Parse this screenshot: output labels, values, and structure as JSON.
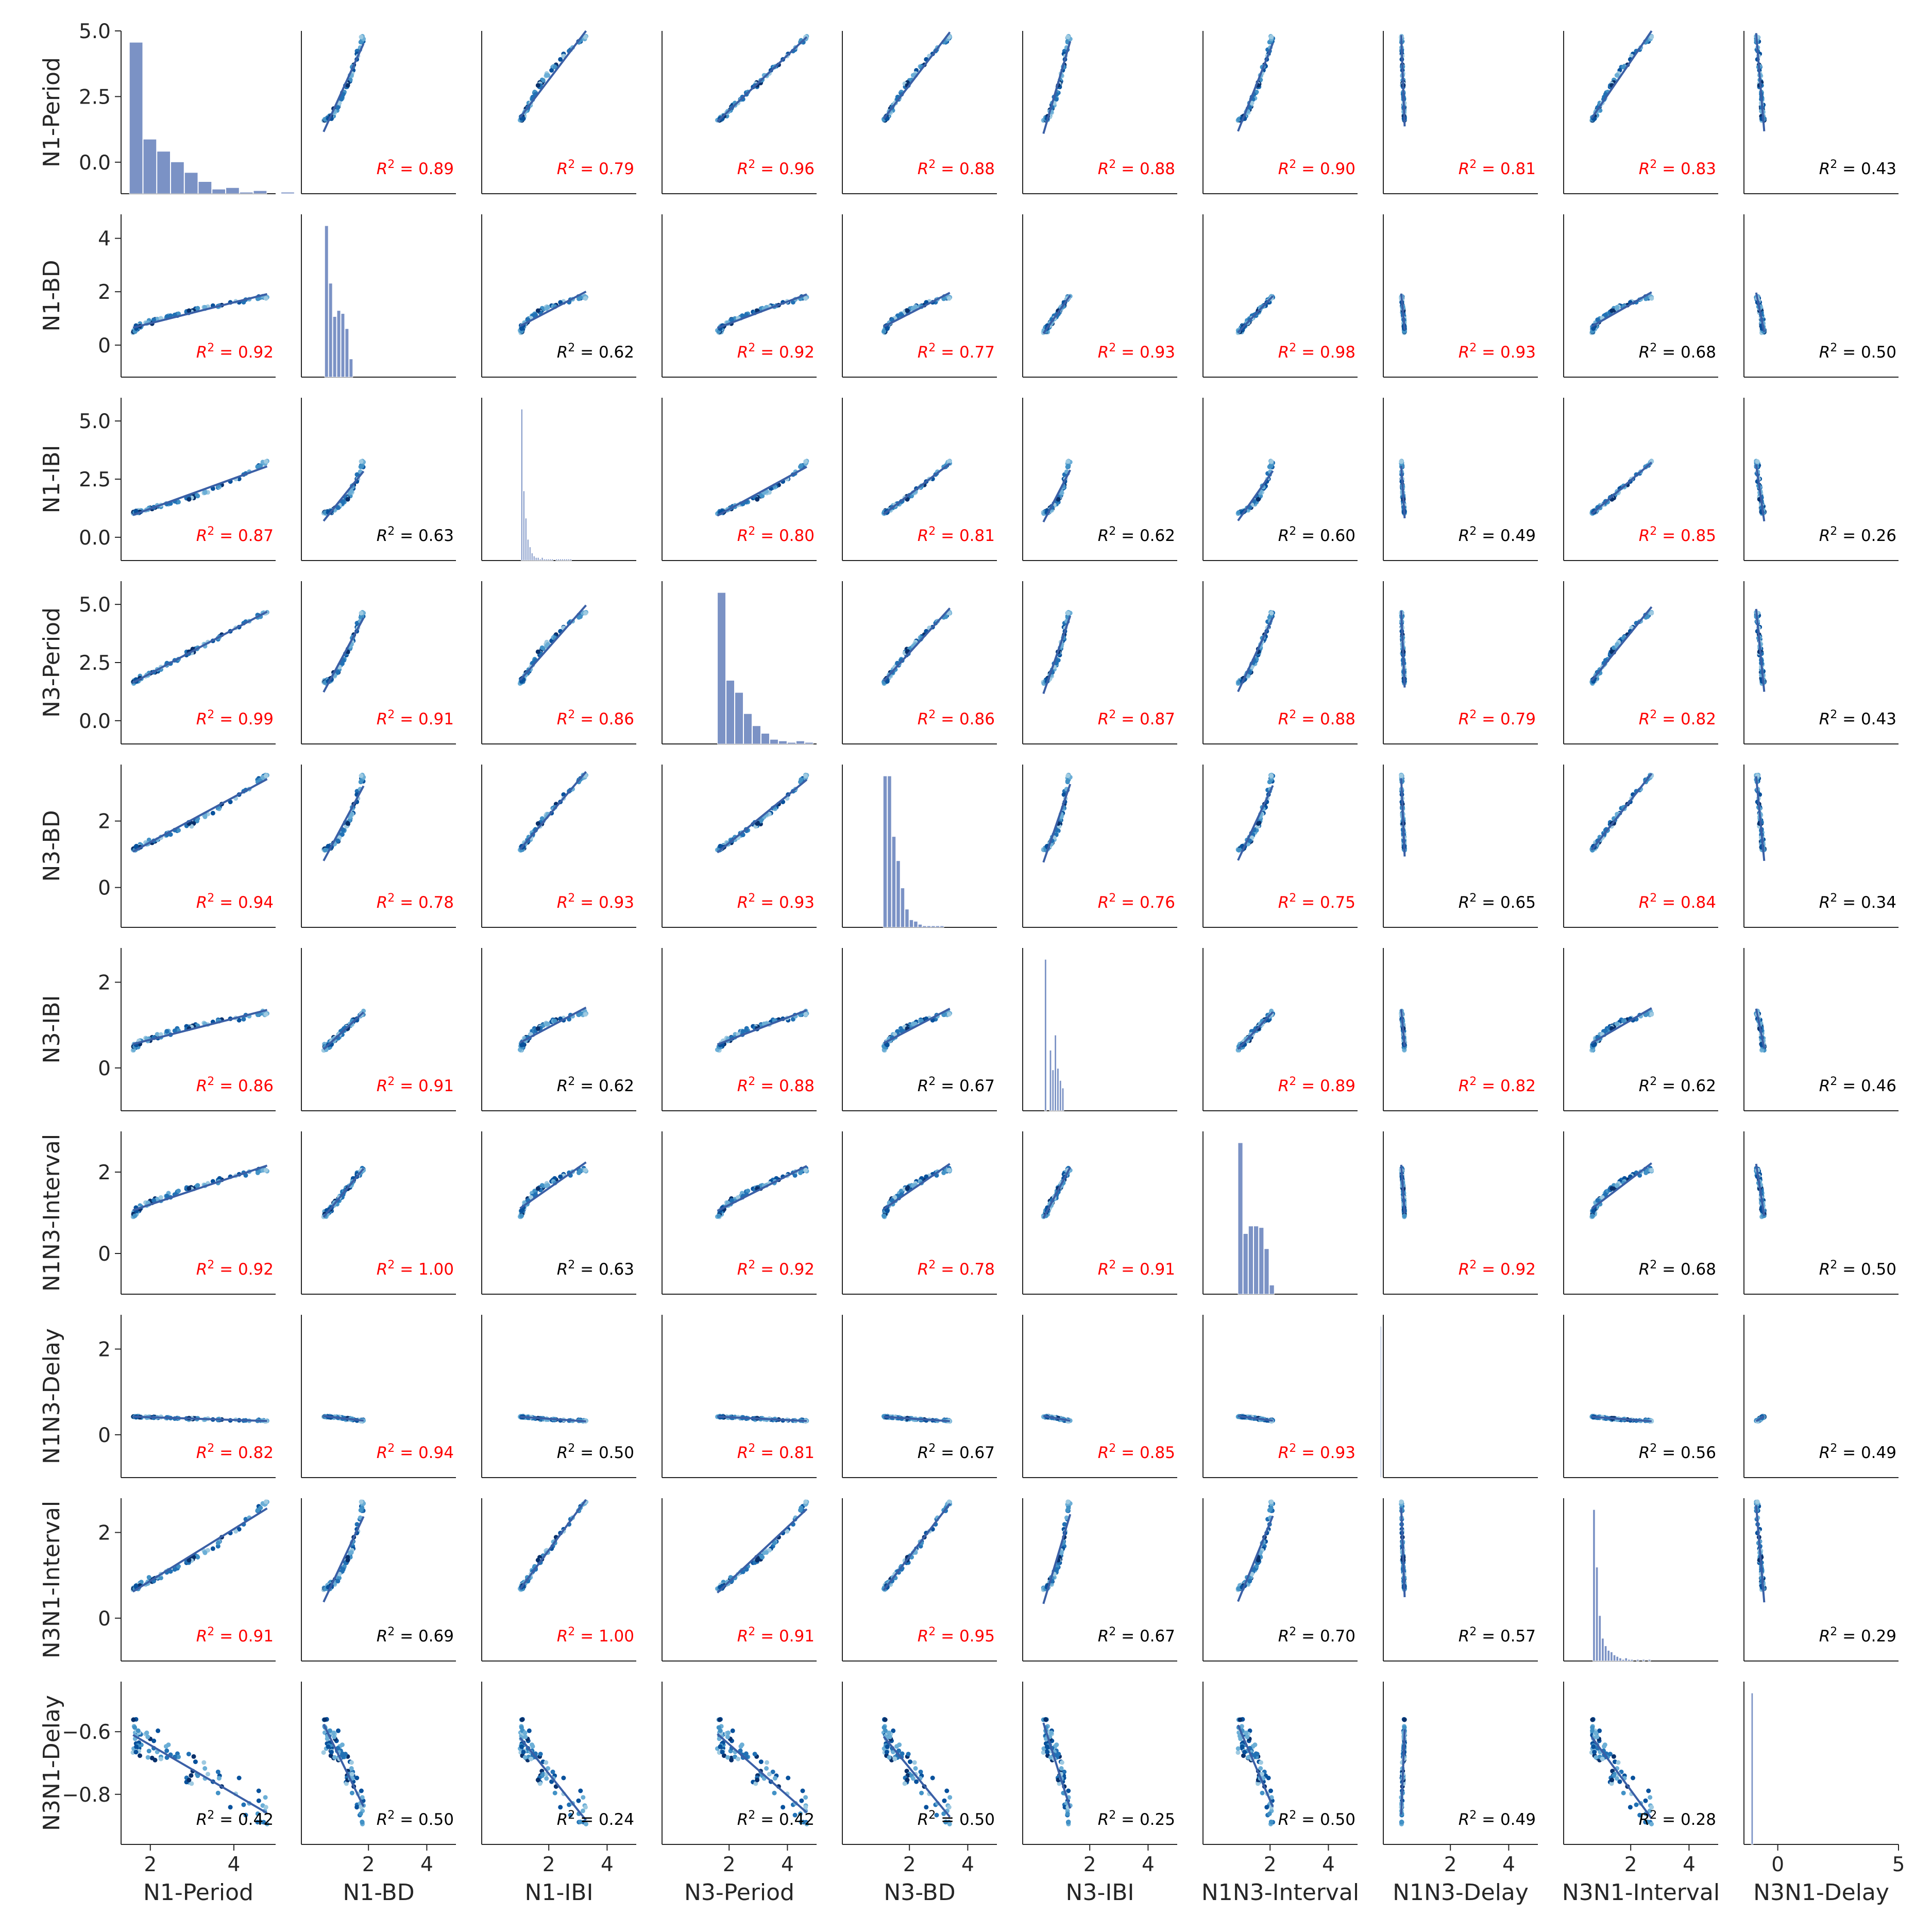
{
  "chart_data": {
    "type": "scatter-matrix",
    "variables": [
      "N1-Period",
      "N1-BD",
      "N1-IBI",
      "N3-Period",
      "N3-BD",
      "N3-IBI",
      "N1N3-Interval",
      "N1N3-Delay",
      "N3N1-Interval",
      "N3N1-Delay"
    ],
    "r2_threshold": 0.75,
    "highlight_color": "#ff0000",
    "normal_color": "#000000",
    "point_colors": [
      "#08306b",
      "#08519c",
      "#2171b5",
      "#4292c6",
      "#6baed6",
      "#9ecae1"
    ],
    "line_color": "#3a5fa6",
    "hist_color": "#7b92c5",
    "y_ranges": [
      [
        -1.2,
        5.0
      ],
      [
        -1.2,
        4.9
      ],
      [
        -1.0,
        6.0
      ],
      [
        -1.0,
        6.0
      ],
      [
        -1.2,
        3.7
      ],
      [
        -1.0,
        2.8
      ],
      [
        -1.0,
        3.0
      ],
      [
        -1.0,
        2.8
      ],
      [
        -1.0,
        2.8
      ],
      [
        -0.96,
        -0.44
      ]
    ],
    "y_ticks": [
      [
        "0.0",
        "2.5",
        "5.0"
      ],
      [
        "0",
        "2",
        "4"
      ],
      [
        "0.0",
        "2.5",
        "5.0"
      ],
      [
        "0.0",
        "2.5",
        "5.0"
      ],
      [
        "0",
        "2"
      ],
      [
        "0",
        "2"
      ],
      [
        "0",
        "2"
      ],
      [
        "0",
        "2"
      ],
      [
        "0",
        "2"
      ],
      [
        "−0.8",
        "−0.6"
      ]
    ],
    "y_tick_values": [
      [
        0,
        2.5,
        5
      ],
      [
        0,
        2,
        4
      ],
      [
        0,
        2.5,
        5
      ],
      [
        0,
        2.5,
        5
      ],
      [
        0,
        2
      ],
      [
        0,
        2
      ],
      [
        0,
        2
      ],
      [
        0,
        2
      ],
      [
        0,
        2
      ],
      [
        -0.8,
        -0.6
      ]
    ],
    "x_ranges": [
      [
        1.3,
        5.0
      ],
      [
        -0.3,
        5.0
      ],
      [
        -0.3,
        5.0
      ],
      [
        -0.3,
        5.0
      ],
      [
        -0.3,
        5.0
      ],
      [
        -0.3,
        5.0
      ],
      [
        -0.3,
        5.0
      ],
      [
        -0.3,
        5.0
      ],
      [
        -0.3,
        5.0
      ],
      [
        -1.4,
        5.0
      ]
    ],
    "x_ticks": [
      [
        "2",
        "4"
      ],
      [
        "2",
        "4"
      ],
      [
        "2",
        "4"
      ],
      [
        "2",
        "4"
      ],
      [
        "2",
        "4"
      ],
      [
        "2",
        "4"
      ],
      [
        "2",
        "4"
      ],
      [
        "2",
        "4"
      ],
      [
        "2",
        "4"
      ],
      [
        "0",
        "5"
      ]
    ],
    "x_tick_values": [
      [
        2,
        4
      ],
      [
        2,
        4
      ],
      [
        2,
        4
      ],
      [
        2,
        4
      ],
      [
        2,
        4
      ],
      [
        2,
        4
      ],
      [
        2,
        4
      ],
      [
        2,
        4
      ],
      [
        2,
        4
      ],
      [
        0,
        5
      ]
    ],
    "r_squared": [
      [
        null,
        0.89,
        0.79,
        0.96,
        0.88,
        0.88,
        0.9,
        0.81,
        0.83,
        0.43
      ],
      [
        0.92,
        null,
        0.62,
        0.92,
        0.77,
        0.93,
        0.98,
        0.93,
        0.68,
        0.5
      ],
      [
        0.87,
        0.63,
        null,
        0.8,
        0.81,
        0.62,
        0.6,
        0.49,
        0.85,
        0.26
      ],
      [
        0.99,
        0.91,
        0.86,
        null,
        0.86,
        0.87,
        0.88,
        0.79,
        0.82,
        0.43
      ],
      [
        0.94,
        0.78,
        0.93,
        0.93,
        null,
        0.76,
        0.75,
        0.65,
        0.84,
        0.34
      ],
      [
        0.86,
        0.91,
        0.62,
        0.88,
        0.67,
        null,
        0.89,
        0.82,
        0.62,
        0.46
      ],
      [
        0.92,
        1.0,
        0.63,
        0.92,
        0.78,
        0.91,
        null,
        0.92,
        0.68,
        0.5
      ],
      [
        0.82,
        0.94,
        0.5,
        0.81,
        0.67,
        0.85,
        0.93,
        null,
        0.56,
        0.49
      ],
      [
        0.91,
        0.69,
        1.0,
        0.91,
        0.95,
        0.67,
        0.7,
        0.57,
        null,
        0.29
      ],
      [
        0.42,
        0.5,
        0.24,
        0.42,
        0.5,
        0.25,
        0.5,
        0.49,
        0.28,
        null
      ]
    ],
    "diagonal_histograms": [
      {
        "bin_start": 1.5,
        "bin_width": 0.33,
        "counts": [
          100,
          36,
          28,
          21,
          14,
          8,
          3,
          4,
          1,
          2,
          0,
          1
        ]
      },
      {
        "bin_start": 0.5,
        "bin_width": 0.14,
        "counts": [
          100,
          62,
          40,
          44,
          42,
          32,
          12
        ]
      },
      {
        "bin_start": 1.05,
        "bin_width": 0.07,
        "counts": [
          100,
          46,
          28,
          14,
          9,
          5,
          3,
          2,
          2,
          1,
          2,
          1,
          1,
          1,
          1,
          1,
          0,
          1,
          1,
          1,
          1,
          1,
          1,
          1,
          1
        ]
      },
      {
        "bin_start": 1.6,
        "bin_width": 0.3,
        "counts": [
          100,
          42,
          34,
          20,
          12,
          7,
          3,
          2,
          1,
          2,
          1
        ]
      },
      {
        "bin_start": 1.1,
        "bin_width": 0.15,
        "counts": [
          100,
          100,
          60,
          44,
          26,
          12,
          5,
          4,
          2,
          1,
          1,
          1,
          1,
          1
        ]
      },
      {
        "bin_start": 0.45,
        "bin_width": 0.085,
        "counts": [
          100,
          0,
          40,
          27,
          50,
          28,
          20,
          15
        ]
      },
      {
        "bin_start": 0.9,
        "bin_width": 0.18,
        "counts": [
          100,
          40,
          45,
          45,
          44,
          30,
          6
        ]
      },
      {
        "bin_start": -0.4,
        "bin_width": 0.05,
        "counts": [
          1
        ]
      },
      {
        "bin_start": 0.7,
        "bin_width": 0.1,
        "counts": [
          100,
          62,
          30,
          15,
          10,
          7,
          6,
          4,
          3,
          2,
          1,
          2,
          1,
          1,
          0,
          1,
          0,
          1,
          0,
          1
        ]
      },
      {
        "bin_start": -1.1,
        "bin_width": 0.1,
        "counts": [
          1
        ]
      }
    ]
  }
}
